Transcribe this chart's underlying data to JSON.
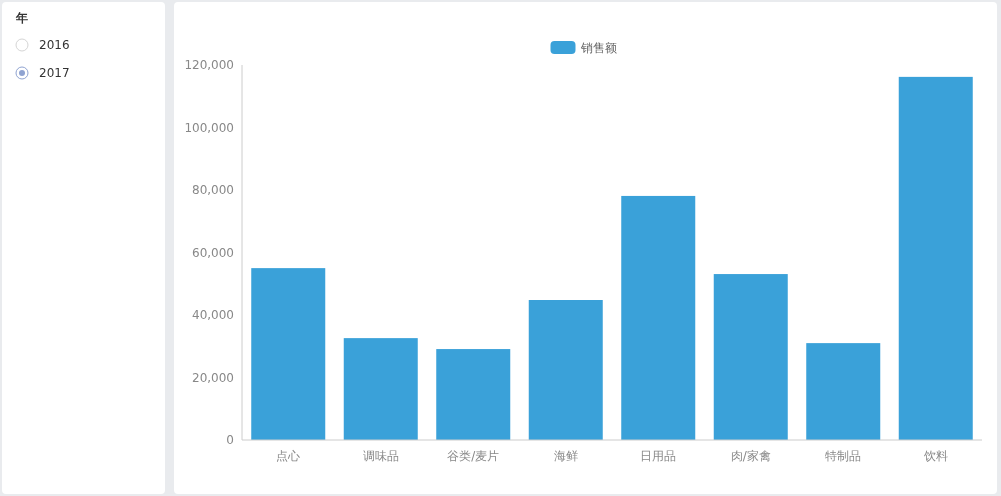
{
  "chart_data": [
    {
      "type": "other",
      "title": "年",
      "annotations": [
        "2016",
        "2017"
      ]
    },
    {
      "type": "bar",
      "categories": [
        "点心",
        "调味品",
        "谷类/麦片",
        "海鲜",
        "日用品",
        "肉/家禽",
        "特制品",
        "饮料"
      ],
      "series": [
        {
          "name": "销售额",
          "color": "#3aa1d9",
          "values": [
            55000,
            32600,
            29100,
            44800,
            78100,
            53100,
            31000,
            116200
          ]
        }
      ],
      "ylim": [
        0,
        120000
      ],
      "yticks": [
        {
          "value": 0,
          "label": "0"
        },
        {
          "value": 20000,
          "label": "20,000"
        },
        {
          "value": 40000,
          "label": "40,000"
        },
        {
          "value": 60000,
          "label": "60,000"
        },
        {
          "value": 80000,
          "label": "80,000"
        },
        {
          "value": 100000,
          "label": "100,000"
        },
        {
          "value": 120000,
          "label": "120,000"
        }
      ],
      "grid": false,
      "legend": "top"
    }
  ]
}
